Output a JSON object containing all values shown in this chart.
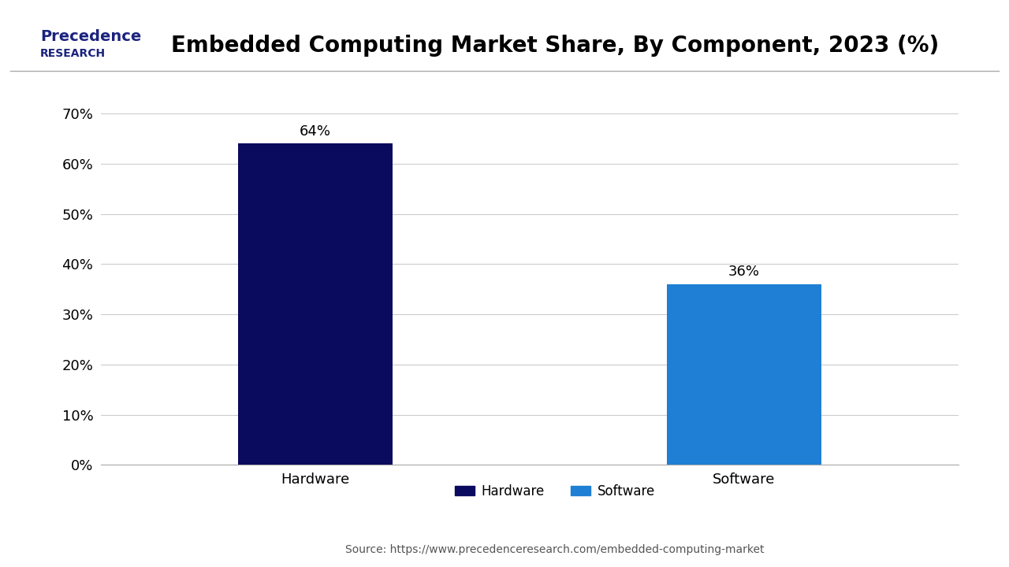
{
  "title": "Embedded Computing Market Share, By Component, 2023 (%)",
  "categories": [
    "Hardware",
    "Software"
  ],
  "values": [
    64,
    36
  ],
  "bar_colors": [
    "#0a0a5e",
    "#1e7fd4"
  ],
  "bar_labels": [
    "64%",
    "36%"
  ],
  "ylim": [
    0,
    70
  ],
  "yticks": [
    0,
    10,
    20,
    30,
    40,
    50,
    60,
    70
  ],
  "ytick_labels": [
    "0%",
    "10%",
    "20%",
    "30%",
    "40%",
    "50%",
    "60%",
    "70%"
  ],
  "legend_labels": [
    "Hardware",
    "Software"
  ],
  "legend_colors": [
    "#0a0a5e",
    "#1e7fd4"
  ],
  "source_text": "Source: https://www.precedenceresearch.com/embedded-computing-market",
  "background_color": "#ffffff",
  "title_fontsize": 20,
  "label_fontsize": 13,
  "tick_fontsize": 13,
  "bar_label_fontsize": 13,
  "legend_fontsize": 12,
  "source_fontsize": 10,
  "logo_text_line1": "Precedence",
  "logo_text_line2": "RESEARCH"
}
